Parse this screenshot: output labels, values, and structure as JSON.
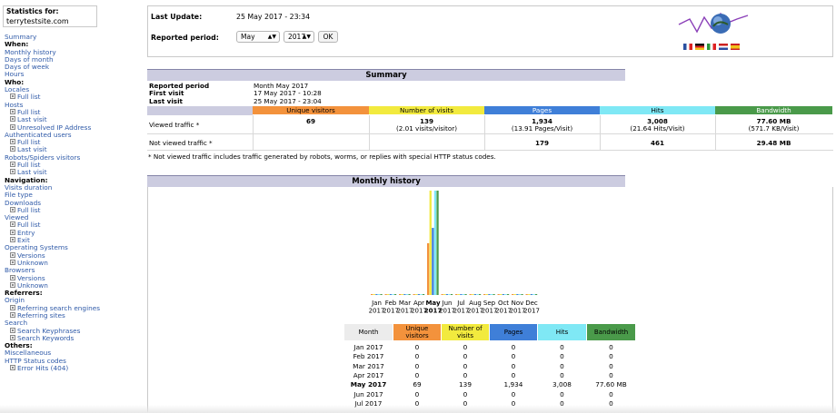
{
  "sidebar": {
    "stats_for_label": "Statistics for:",
    "site": "terrytestsite.com",
    "menu": [
      {
        "text": "Summary",
        "type": "link"
      },
      {
        "text": "When:",
        "type": "head"
      },
      {
        "text": "Monthly history",
        "type": "link"
      },
      {
        "text": "Days of month",
        "type": "link"
      },
      {
        "text": "Days of week",
        "type": "link"
      },
      {
        "text": "Hours",
        "type": "link"
      },
      {
        "text": "Who:",
        "type": "head"
      },
      {
        "text": "Locales",
        "type": "link"
      },
      {
        "text": "Full list",
        "type": "sub"
      },
      {
        "text": "Hosts",
        "type": "link"
      },
      {
        "text": "Full list",
        "type": "sub"
      },
      {
        "text": "Last visit",
        "type": "sub"
      },
      {
        "text": "Unresolved IP Address",
        "type": "sub"
      },
      {
        "text": "Authenticated users",
        "type": "link"
      },
      {
        "text": "Full list",
        "type": "sub"
      },
      {
        "text": "Last visit",
        "type": "sub"
      },
      {
        "text": "Robots/Spiders visitors",
        "type": "link"
      },
      {
        "text": "Full list",
        "type": "sub"
      },
      {
        "text": "Last visit",
        "type": "sub"
      },
      {
        "text": "Navigation:",
        "type": "head"
      },
      {
        "text": "Visits duration",
        "type": "link"
      },
      {
        "text": "File type",
        "type": "link"
      },
      {
        "text": "Downloads",
        "type": "link"
      },
      {
        "text": "Full list",
        "type": "sub"
      },
      {
        "text": "Viewed",
        "type": "link"
      },
      {
        "text": "Full list",
        "type": "sub"
      },
      {
        "text": "Entry",
        "type": "sub"
      },
      {
        "text": "Exit",
        "type": "sub"
      },
      {
        "text": "Operating Systems",
        "type": "link"
      },
      {
        "text": "Versions",
        "type": "sub"
      },
      {
        "text": "Unknown",
        "type": "sub"
      },
      {
        "text": "Browsers",
        "type": "link"
      },
      {
        "text": "Versions",
        "type": "sub"
      },
      {
        "text": "Unknown",
        "type": "sub"
      },
      {
        "text": "Referrers:",
        "type": "head"
      },
      {
        "text": "Origin",
        "type": "link"
      },
      {
        "text": "Referring search engines",
        "type": "sub"
      },
      {
        "text": "Referring sites",
        "type": "sub"
      },
      {
        "text": "Search",
        "type": "link"
      },
      {
        "text": "Search Keyphrases",
        "type": "sub"
      },
      {
        "text": "Search Keywords",
        "type": "sub"
      },
      {
        "text": "Others:",
        "type": "head"
      },
      {
        "text": "Miscellaneous",
        "type": "link"
      },
      {
        "text": "HTTP Status codes",
        "type": "link"
      },
      {
        "text": "Error Hits (404)",
        "type": "sub"
      }
    ]
  },
  "top": {
    "last_update_label": "Last Update:",
    "last_update_value": "25 May 2017 - 23:34",
    "period_label": "Reported period:",
    "month_select": "May",
    "year_select": "2017",
    "ok_label": "OK"
  },
  "summary": {
    "title": "Summary",
    "reported_period_label": "Reported period",
    "reported_period_value": "Month May 2017",
    "first_visit_label": "First visit",
    "first_visit_value": "17 May 2017 - 10:28",
    "last_visit_label": "Last visit",
    "last_visit_value": "25 May 2017 - 23:04",
    "headers": [
      "Unique visitors",
      "Number of visits",
      "Pages",
      "Hits",
      "Bandwidth"
    ],
    "viewed_label": "Viewed traffic *",
    "viewed": [
      "69",
      "139",
      "1,934",
      "3,008",
      "77.60 MB"
    ],
    "viewed_sub": [
      "",
      "(2.01 visits/visitor)",
      "(13.91 Pages/Visit)",
      "(21.64 Hits/Visit)",
      "(571.7 KB/Visit)"
    ],
    "not_viewed_label": "Not viewed traffic *",
    "not_viewed": [
      "",
      "",
      "179",
      "461",
      "29.48 MB"
    ],
    "note": "* Not viewed traffic includes traffic generated by robots, worms, or replies with special HTTP status codes."
  },
  "monthly": {
    "title": "Monthly history",
    "table_headers": [
      "Month",
      "Unique visitors",
      "Number of visits",
      "Pages",
      "Hits",
      "Bandwidth"
    ],
    "rows": [
      {
        "month": "Jan 2017",
        "v": [
          "0",
          "0",
          "0",
          "0",
          "0"
        ]
      },
      {
        "month": "Feb 2017",
        "v": [
          "0",
          "0",
          "0",
          "0",
          "0"
        ]
      },
      {
        "month": "Mar 2017",
        "v": [
          "0",
          "0",
          "0",
          "0",
          "0"
        ]
      },
      {
        "month": "Apr 2017",
        "v": [
          "0",
          "0",
          "0",
          "0",
          "0"
        ]
      },
      {
        "month": "May 2017",
        "v": [
          "69",
          "139",
          "1,934",
          "3,008",
          "77.60 MB"
        ],
        "bold": true
      },
      {
        "month": "Jun 2017",
        "v": [
          "0",
          "0",
          "0",
          "0",
          "0"
        ]
      },
      {
        "month": "Jul 2017",
        "v": [
          "0",
          "0",
          "0",
          "0",
          "0"
        ]
      }
    ]
  },
  "colors": {
    "visitors": "#f3923c",
    "visits": "#f2ea3e",
    "pages": "#3f7fd8",
    "hits": "#7fe8f5",
    "bandwidth": "#4a9a4a",
    "section_header": "#cccce0"
  },
  "chart_data": {
    "type": "bar",
    "categories": [
      "Jan\n2017",
      "Feb\n2017",
      "Mar\n2017",
      "Apr\n2017",
      "May\n2017",
      "Jun\n2017",
      "Jul\n2017",
      "Aug\n2017",
      "Sep\n2017",
      "Oct\n2017",
      "Nov\n2017",
      "Dec\n2017"
    ],
    "series": [
      {
        "name": "Unique visitors",
        "values": [
          0,
          0,
          0,
          0,
          69,
          0,
          0,
          0,
          0,
          0,
          0,
          0
        ]
      },
      {
        "name": "Number of visits",
        "values": [
          0,
          0,
          0,
          0,
          139,
          0,
          0,
          0,
          0,
          0,
          0,
          0
        ]
      },
      {
        "name": "Pages",
        "values": [
          0,
          0,
          0,
          0,
          1934,
          0,
          0,
          0,
          0,
          0,
          0,
          0
        ]
      },
      {
        "name": "Hits",
        "values": [
          0,
          0,
          0,
          0,
          3008,
          0,
          0,
          0,
          0,
          0,
          0,
          0
        ]
      },
      {
        "name": "Bandwidth",
        "values": [
          0,
          0,
          0,
          0,
          77.6,
          0,
          0,
          0,
          0,
          0,
          0,
          0
        ]
      }
    ],
    "title": "",
    "xlabel": "",
    "ylabel": ""
  }
}
